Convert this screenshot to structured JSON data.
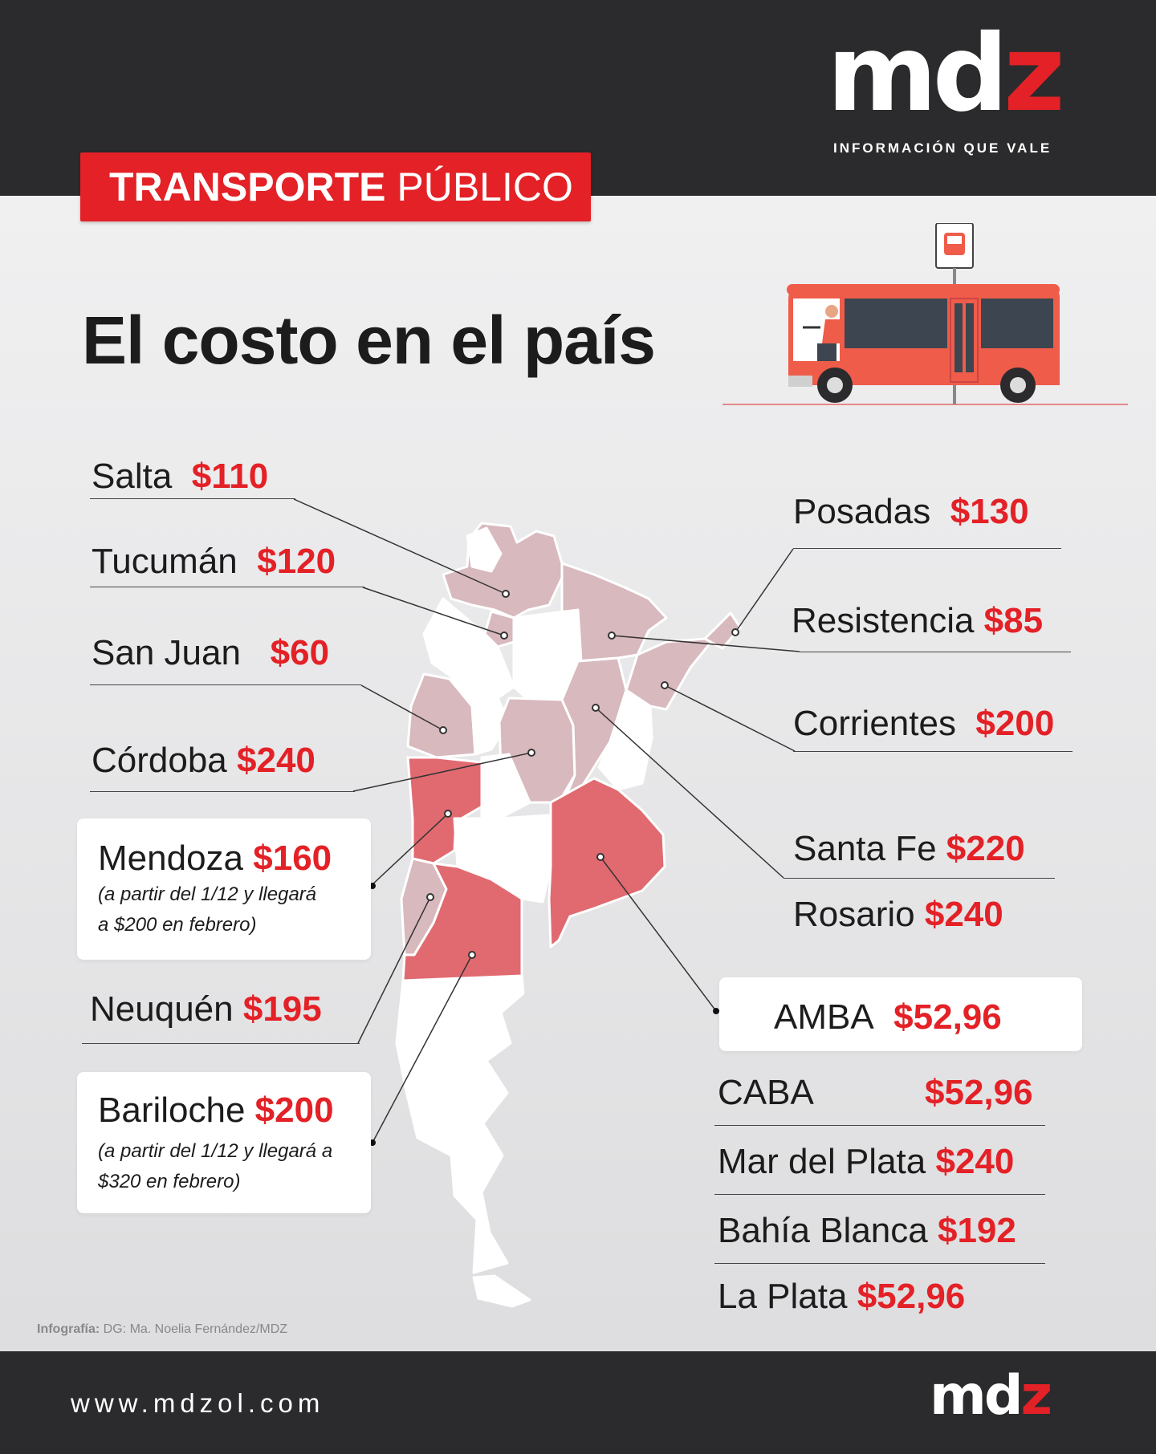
{
  "header": {
    "logo_main": "md",
    "logo_accent": "z",
    "tagline": "INFORMACIÓN QUE VALE",
    "section_bold": "TRANSPORTE",
    "section_light": "PÚBLICO"
  },
  "headline": "El costo en el país",
  "colors": {
    "accent": "#e32126",
    "dark": "#2b2b2d",
    "region_mid": "#d8b9bd",
    "region_high": "#e06a70",
    "region_none": "#ffffff"
  },
  "left_labels": [
    {
      "city": "Salta",
      "price": "$110"
    },
    {
      "city": "Tucumán",
      "price": "$120"
    },
    {
      "city": "San Juan",
      "price": "$60"
    },
    {
      "city": "Córdoba",
      "price": "$240"
    },
    {
      "city": "Mendoza",
      "price": "$160",
      "note1": "(a partir del 1/12 y llegará",
      "note2": "a $200 en febrero)"
    },
    {
      "city": "Neuquén",
      "price": "$195"
    },
    {
      "city": "Bariloche",
      "price": "$200",
      "note1": "(a partir del 1/12 y llegará a",
      "note2": "$320 en febrero)"
    }
  ],
  "right_labels": [
    {
      "city": "Posadas",
      "price": "$130"
    },
    {
      "city": "Resistencia",
      "price": "$85"
    },
    {
      "city": "Corrientes",
      "price": "$200"
    },
    {
      "city": "Santa Fe",
      "price": "$220"
    },
    {
      "city": "Rosario",
      "price": "$240"
    },
    {
      "city": "AMBA",
      "price": "$52,96"
    },
    {
      "city": "CABA",
      "price": "$52,96"
    },
    {
      "city": "Mar del Plata",
      "price": "$240"
    },
    {
      "city": "Bahía Blanca",
      "price": "$192"
    },
    {
      "city": "La Plata",
      "price": "$52,96"
    }
  ],
  "footer": {
    "credit_label": "Infografía:",
    "credit_text": "DG: Ma. Noelia Fernández/MDZ",
    "url": "www.mdzol.com",
    "logo_main": "md",
    "logo_accent": "z"
  },
  "icons": [
    "bus-icon",
    "bus-stop-sign-icon",
    "argentina-map"
  ]
}
